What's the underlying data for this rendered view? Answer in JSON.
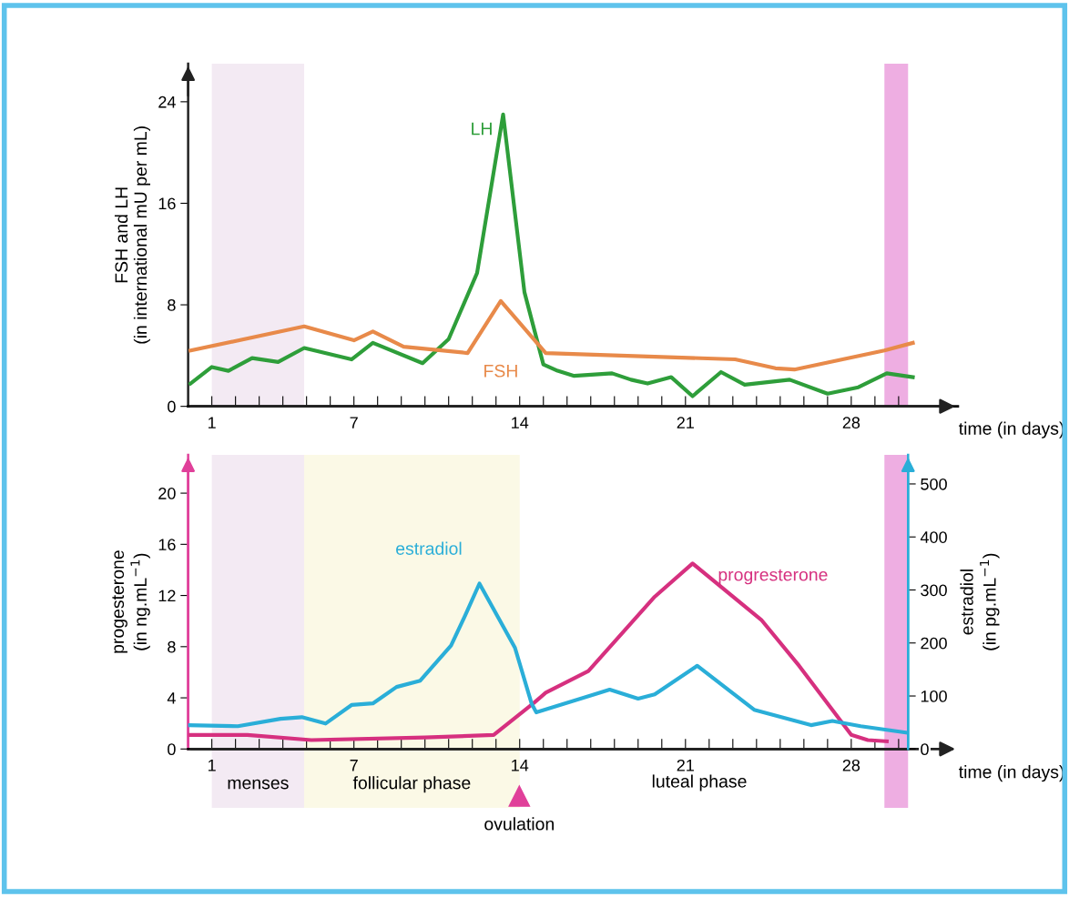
{
  "chart_data": [
    {
      "type": "line",
      "ylabel": "FSH and LH\n(in international mU per mL)",
      "xlabel": "time (in days)",
      "xlim": [
        0,
        32.5
      ],
      "ylim": [
        0,
        27
      ],
      "yticks": [
        0,
        8,
        16,
        24
      ],
      "xticks": [
        1,
        {
          "value": 2,
          "label": null
        },
        {
          "value": 3,
          "label": null
        },
        {
          "value": 4,
          "label": null
        },
        {
          "value": 5,
          "label": null
        },
        {
          "value": 6,
          "label": null
        },
        7,
        {
          "value": 8,
          "label": null
        },
        {
          "value": 9,
          "label": null
        },
        {
          "value": 10,
          "label": null
        },
        {
          "value": 11,
          "label": null
        },
        {
          "value": 12,
          "label": null
        },
        {
          "value": 13,
          "label": null
        },
        14,
        {
          "value": 15,
          "label": null
        },
        {
          "value": 16,
          "label": null
        },
        {
          "value": 17,
          "label": null
        },
        {
          "value": 18,
          "label": null
        },
        {
          "value": 19,
          "label": null
        },
        {
          "value": 20,
          "label": null
        },
        21,
        {
          "value": 22,
          "label": null
        },
        {
          "value": 23,
          "label": null
        },
        {
          "value": 24,
          "label": null
        },
        {
          "value": 25,
          "label": null
        },
        {
          "value": 26,
          "label": null
        },
        {
          "value": 27,
          "label": null
        },
        28,
        {
          "value": 29,
          "label": null
        },
        {
          "value": 30,
          "label": null
        }
      ],
      "grid": false,
      "legend": false,
      "bands": [
        {
          "axis": "x",
          "from": 1,
          "to": 4.9,
          "color": "#f3eaf3"
        },
        {
          "axis": "x",
          "from": 29.4,
          "to": 30.4,
          "color": "#eeaee2"
        }
      ],
      "series": [
        {
          "name": "LH",
          "color": "#2e9e3a",
          "x": [
            0.1,
            1,
            1.7,
            2.7,
            3.8,
            4.9,
            6.9,
            7.8,
            9.9,
            11,
            12.2,
            13.3,
            14.2,
            15,
            15.6,
            16.3,
            17.9,
            18.7,
            19.4,
            20.4,
            21.3,
            22.5,
            23.5,
            25.4,
            27,
            28.3,
            29.5,
            30.6
          ],
          "values": [
            1.8,
            3.1,
            2.8,
            3.8,
            3.5,
            4.6,
            3.7,
            5.0,
            3.4,
            5.3,
            10.5,
            23.0,
            9.0,
            3.3,
            2.8,
            2.4,
            2.6,
            2.1,
            1.8,
            2.3,
            0.8,
            2.7,
            1.7,
            2.1,
            1.0,
            1.5,
            2.6,
            2.3
          ]
        },
        {
          "name": "FSH",
          "color": "#e88a4a",
          "x": [
            0.1,
            4.9,
            7,
            7.8,
            9.1,
            11.8,
            13.2,
            15.1,
            23.1,
            24.8,
            25.6,
            29.4,
            30.6
          ],
          "values": [
            4.4,
            6.3,
            5.2,
            5.9,
            4.7,
            4.2,
            8.3,
            4.2,
            3.7,
            3.0,
            2.9,
            4.4,
            5.0
          ]
        }
      ]
    },
    {
      "type": "line",
      "ylabel": "progesterone\n(in ng.mL$^{−1}$)",
      "y2label": "estradiol\n(in pg.mL$^{−1}$)",
      "xlabel": "time (in days)",
      "xlim": [
        0,
        30.4
      ],
      "ylim": [
        0,
        23
      ],
      "yticks": [
        0,
        4,
        8,
        12,
        16,
        20
      ],
      "y2lim": [
        0,
        555
      ],
      "y2ticks": [
        0,
        100,
        200,
        300,
        400,
        500
      ],
      "xticks": [
        1,
        {
          "value": 2,
          "label": null
        },
        {
          "value": 3,
          "label": null
        },
        {
          "value": 4,
          "label": null
        },
        {
          "value": 5,
          "label": null
        },
        {
          "value": 6,
          "label": null
        },
        7,
        {
          "value": 8,
          "label": null
        },
        {
          "value": 9,
          "label": null
        },
        {
          "value": 10,
          "label": null
        },
        {
          "value": 11,
          "label": null
        },
        {
          "value": 12,
          "label": null
        },
        {
          "value": 13,
          "label": null
        },
        14,
        {
          "value": 15,
          "label": null
        },
        {
          "value": 16,
          "label": null
        },
        {
          "value": 17,
          "label": null
        },
        {
          "value": 18,
          "label": null
        },
        {
          "value": 19,
          "label": null
        },
        {
          "value": 20,
          "label": null
        },
        21,
        {
          "value": 22,
          "label": null
        },
        {
          "value": 23,
          "label": null
        },
        {
          "value": 24,
          "label": null
        },
        {
          "value": 25,
          "label": null
        },
        {
          "value": 26,
          "label": null
        },
        {
          "value": 27,
          "label": null
        },
        28,
        {
          "value": 29,
          "label": null
        },
        {
          "value": 30,
          "label": null
        }
      ],
      "grid": false,
      "legend": false,
      "bands": [
        {
          "axis": "x",
          "from": 1,
          "to": 4.9,
          "color": "#f3eaf3",
          "label": "menses"
        },
        {
          "axis": "x",
          "from": 4.9,
          "to": 14,
          "color": "#fbf9e6",
          "label": "follicular phase"
        },
        {
          "axis": "x",
          "from": 29.4,
          "to": 30.4,
          "color": "#eeaee2"
        }
      ],
      "annotations": [
        "luteal phase",
        "ovulation"
      ],
      "series": [
        {
          "name": "estradiol",
          "color": "#2aaed8",
          "axis": "y2",
          "x": [
            0,
            2.1,
            3.9,
            4.8,
            5.8,
            6.9,
            7.8,
            8.8,
            9.8,
            11.1,
            11.7,
            12.3,
            13.8,
            14.5,
            14.7,
            17.8,
            19,
            19.7,
            21.5,
            23.9,
            26.3,
            27.2,
            28.4,
            30.3
          ],
          "values": [
            45,
            43,
            57,
            60,
            48,
            83,
            86,
            117,
            129,
            195,
            252,
            312,
            191,
            86,
            69,
            112,
            95,
            103,
            157,
            74,
            45,
            53,
            43,
            31
          ]
        },
        {
          "name": "progresterone",
          "color": "#d6307f",
          "x": [
            0,
            2.5,
            5.2,
            10,
            12.9,
            14.6,
            15.1,
            16.9,
            19.7,
            21.3,
            24.2,
            25.8,
            28,
            28.7,
            29.5
          ],
          "values": [
            1.1,
            1.1,
            0.7,
            0.9,
            1.1,
            3.6,
            4.4,
            6.1,
            11.9,
            14.5,
            10.1,
            6.5,
            1.1,
            0.7,
            0.6
          ]
        }
      ]
    }
  ]
}
